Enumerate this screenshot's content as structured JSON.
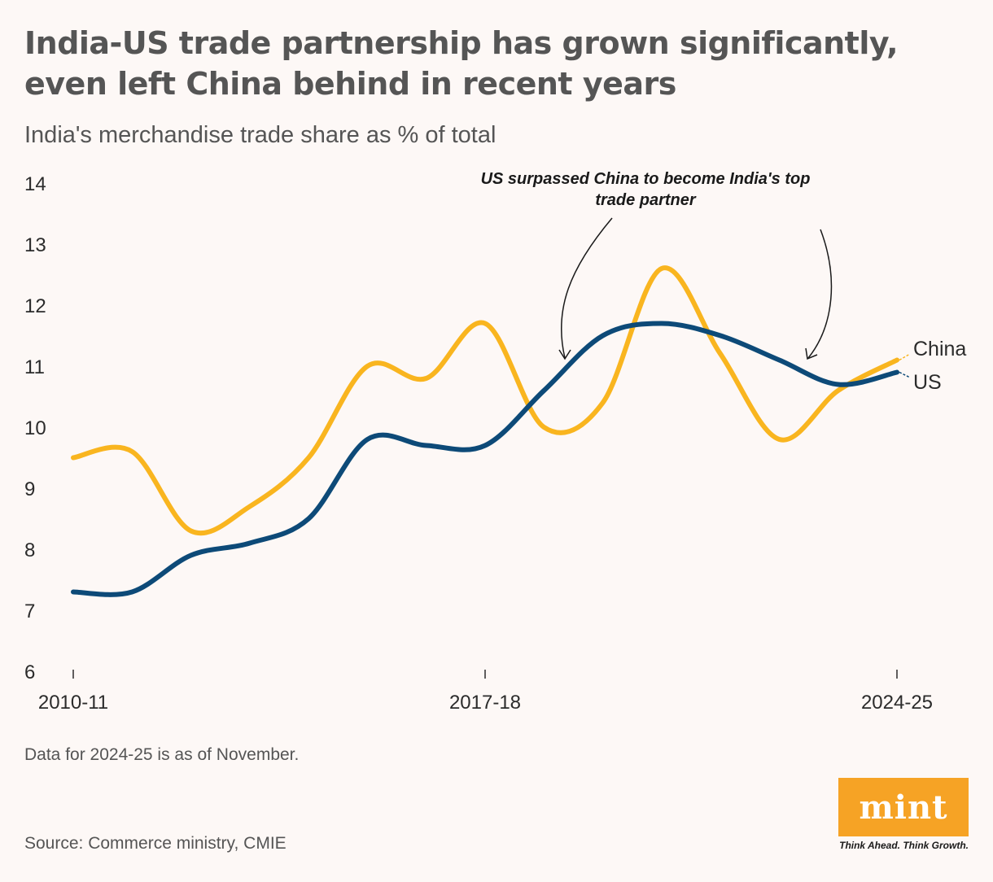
{
  "title": "India-US trade partnership has grown significantly, even left China behind in recent years",
  "subtitle": "India's merchandise trade share as % of total",
  "note": "Data for 2024-25 is as of November.",
  "source": "Source: Commerce ministry, CMIE",
  "brand": {
    "logo": "mint",
    "tagline": "Think Ahead. Think Growth.",
    "color": "#f6a325"
  },
  "chart_data": {
    "type": "line",
    "title": "India-US trade partnership has grown significantly, even left China behind in recent years",
    "ylabel": "India's merchandise trade share as % of total",
    "x": [
      "2010-11",
      "2011-12",
      "2012-13",
      "2013-14",
      "2014-15",
      "2015-16",
      "2016-17",
      "2017-18",
      "2018-19",
      "2019-20",
      "2020-21",
      "2021-22",
      "2022-23",
      "2023-24",
      "2024-25"
    ],
    "xticks": [
      "2010-11",
      "2017-18",
      "2024-25"
    ],
    "ylim": [
      6,
      14
    ],
    "yticks": [
      6,
      7,
      8,
      9,
      10,
      11,
      12,
      13,
      14
    ],
    "grid": false,
    "series": [
      {
        "name": "China",
        "color": "#f9b51f",
        "values": [
          9.5,
          9.6,
          8.3,
          8.7,
          9.5,
          11.0,
          10.8,
          11.7,
          10.0,
          10.4,
          12.6,
          11.2,
          9.8,
          10.6,
          11.1
        ]
      },
      {
        "name": "US",
        "color": "#0d4a78",
        "values": [
          7.3,
          7.3,
          7.9,
          8.1,
          8.5,
          9.8,
          9.7,
          9.7,
          10.6,
          11.5,
          11.7,
          11.5,
          11.1,
          10.7,
          10.9
        ]
      }
    ],
    "annotation": {
      "text_line1": "US surpassed China to become India's top",
      "text_line2": "trade partner"
    }
  }
}
